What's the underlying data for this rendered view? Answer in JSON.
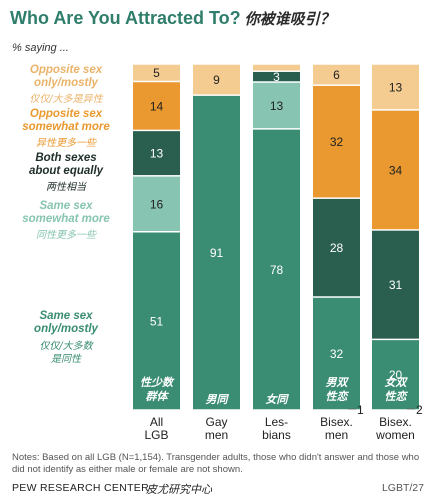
{
  "title": "Who Are You Attracted To?",
  "title_cn": "你被谁吸引？",
  "subtitle": "% saying ...",
  "notes": "Notes: Based on all LGB (N=1,154). Transgender adults, those who didn't answer and those who did not identify as either male or female are not shown.",
  "footer": {
    "source": "PEW RESEARCH CENTER",
    "source_cn": "皮尤研究中心",
    "id": "LGBT/27"
  },
  "colors": {
    "opposite_only": "#f4cc91",
    "opposite_more": "#e9992f",
    "both": "#2a5e4f",
    "same_more": "#87c4b1",
    "same_only": "#3a8c72"
  },
  "legend": [
    {
      "label": "Opposite sex\nonly/mostly",
      "cn": "仅仅/大多是异性",
      "color": "#f4cc91"
    },
    {
      "label": "Opposite sex\nsomewhat more",
      "cn": "异性更多一些",
      "color": "#e9992f"
    },
    {
      "label": "Both sexes\nabout equally",
      "cn": "两性相当",
      "color": "#2a5e4f"
    },
    {
      "label": "Same sex\nsomewhat more",
      "cn": "同性更多一些",
      "color": "#87c4b1"
    },
    {
      "label": "Same sex\nonly/mostly",
      "cn": "仅仅/大多数\n是同性",
      "color": "#3a8c72"
    }
  ],
  "chart_data": {
    "type": "bar",
    "stacked": true,
    "title": "Who Are You Attracted To?",
    "subtitle": "% saying ...",
    "categories": [
      "All\nLGB",
      "Gay\nmen",
      "Les-\nbians",
      "Bisex.\nmen",
      "Bisex.\nwomen"
    ],
    "category_cn": [
      "性少数\n群体",
      "男同",
      "女同",
      "男双\n性恋",
      "女双\n性恋"
    ],
    "series": [
      {
        "name": "Same sex only/mostly",
        "values": [
          51,
          91,
          78,
          32,
          20
        ]
      },
      {
        "name": "Same sex somewhat more",
        "values": [
          16,
          0,
          13,
          0,
          0
        ]
      },
      {
        "name": "Both sexes about equally",
        "values": [
          13,
          0,
          3,
          28,
          31
        ]
      },
      {
        "name": "Opposite sex somewhat more",
        "values": [
          14,
          0,
          0,
          32,
          34
        ]
      },
      {
        "name": "Opposite sex only/mostly",
        "values": [
          5,
          9,
          2,
          6,
          13
        ]
      }
    ],
    "ylim": [
      0,
      100
    ]
  }
}
